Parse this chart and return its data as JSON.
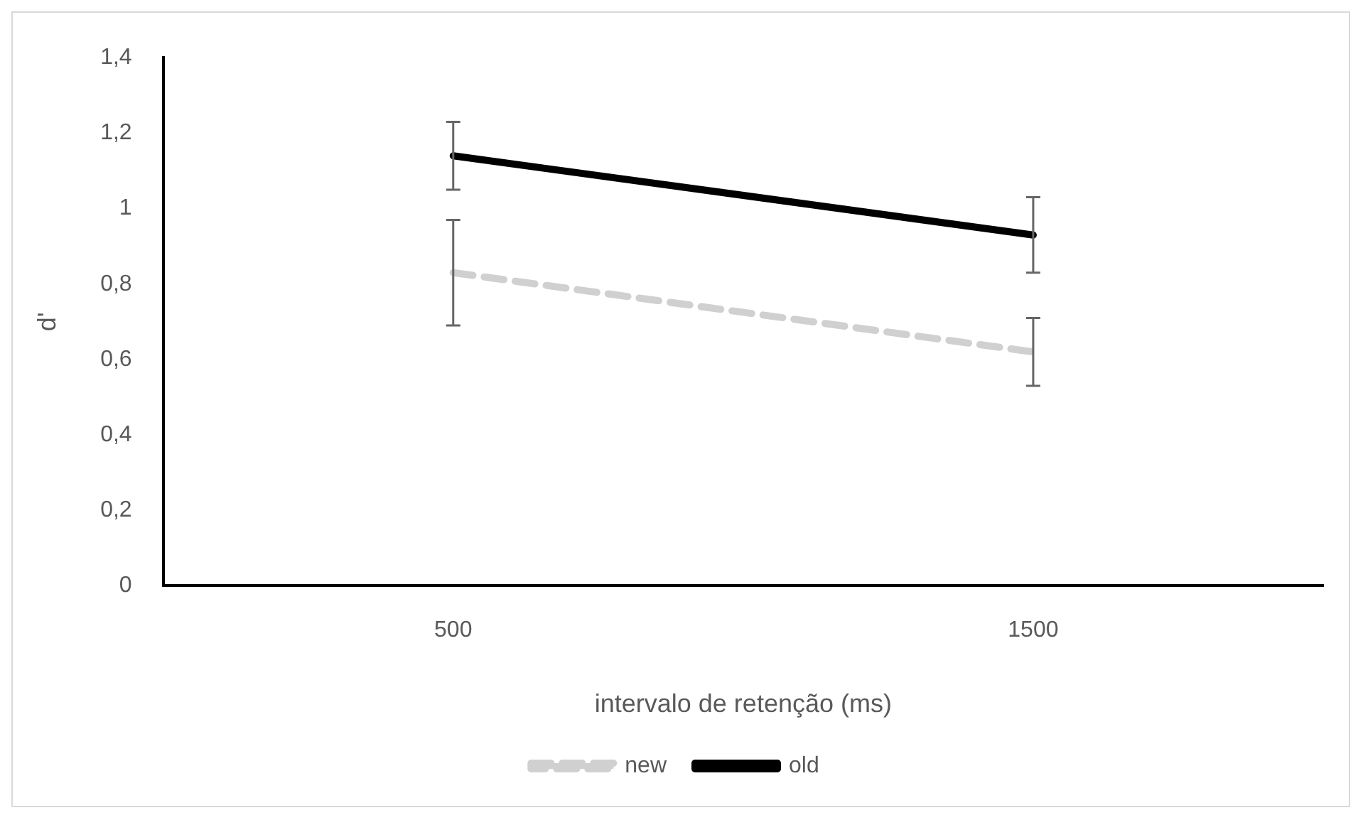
{
  "chart_data": {
    "type": "line",
    "xlabel": "intervalo de retenção (ms)",
    "ylabel": "d'",
    "categories": [
      "500",
      "1500"
    ],
    "series": [
      {
        "name": "new",
        "color": "#d0d0d0",
        "values": [
          0.83,
          0.62
        ],
        "errors": [
          0.14,
          0.09
        ],
        "line_style": "dashed"
      },
      {
        "name": "old",
        "color": "#000000",
        "values": [
          1.14,
          0.93
        ],
        "errors": [
          0.09,
          0.1
        ],
        "line_style": "solid"
      }
    ],
    "ylim": [
      0,
      1.4
    ],
    "yticks": [
      {
        "value": 0,
        "label": "0"
      },
      {
        "value": 0.2,
        "label": "0,2"
      },
      {
        "value": 0.4,
        "label": "0,4"
      },
      {
        "value": 0.6,
        "label": "0,6"
      },
      {
        "value": 0.8,
        "label": "0,8"
      },
      {
        "value": 1,
        "label": "1"
      },
      {
        "value": 1.2,
        "label": "1,2"
      },
      {
        "value": 1.4,
        "label": "1,4"
      }
    ],
    "grid": false,
    "legend": "bottom",
    "marker": "none"
  }
}
